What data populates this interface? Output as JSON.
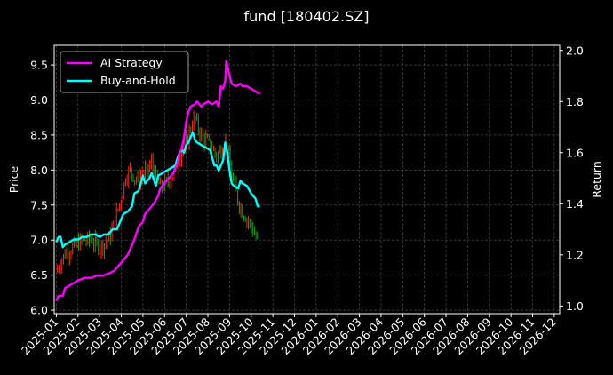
{
  "chart_data": {
    "type": "line",
    "title": "fund [180402.SZ]",
    "ylabel_left": "Price",
    "ylabel_right": "Return",
    "ylim_left": [
      5.95,
      9.78
    ],
    "ylim_right": [
      0.97,
      2.02
    ],
    "yticks_left": [
      "6.0",
      "6.5",
      "7.0",
      "7.5",
      "8.0",
      "8.5",
      "9.0",
      "9.5"
    ],
    "yticks_right": [
      "1.0",
      "1.2",
      "1.4",
      "1.6",
      "1.8",
      "2.0"
    ],
    "xticks": [
      "2025-01",
      "2025-02",
      "2025-03",
      "2025-04",
      "2025-05",
      "2025-06",
      "2025-07",
      "2025-08",
      "2025-09",
      "2025-10",
      "2025-11",
      "2025-12",
      "2026-01",
      "2026-02",
      "2026-03",
      "2026-04",
      "2026-05",
      "2026-06",
      "2026-07",
      "2026-08",
      "2026-09",
      "2026-10",
      "2026-11",
      "2026-12"
    ],
    "xlim_months": [
      -0.1,
      23.25
    ],
    "grid": true,
    "legend_position": "top-left",
    "colors": {
      "background": "#000000",
      "ai": "#ff00ff",
      "bh": "#00ffff",
      "up": "#ff2a1a",
      "down": "#1f9e1f",
      "grid": "#555555"
    },
    "series": [
      {
        "name": "AI Strategy",
        "axis": "right",
        "points": [
          [
            0.0,
            1.02
          ],
          [
            0.1,
            1.04
          ],
          [
            0.3,
            1.04
          ],
          [
            0.4,
            1.07
          ],
          [
            0.6,
            1.08
          ],
          [
            0.8,
            1.09
          ],
          [
            1.0,
            1.1
          ],
          [
            1.3,
            1.11
          ],
          [
            1.6,
            1.11
          ],
          [
            1.9,
            1.12
          ],
          [
            2.2,
            1.12
          ],
          [
            2.5,
            1.13
          ],
          [
            2.7,
            1.14
          ],
          [
            2.9,
            1.16
          ],
          [
            3.1,
            1.18
          ],
          [
            3.3,
            1.2
          ],
          [
            3.4,
            1.22
          ],
          [
            3.6,
            1.26
          ],
          [
            3.8,
            1.31
          ],
          [
            4.0,
            1.33
          ],
          [
            4.1,
            1.36
          ],
          [
            4.3,
            1.38
          ],
          [
            4.5,
            1.4
          ],
          [
            4.7,
            1.43
          ],
          [
            4.8,
            1.46
          ],
          [
            5.0,
            1.48
          ],
          [
            5.2,
            1.5
          ],
          [
            5.4,
            1.52
          ],
          [
            5.6,
            1.56
          ],
          [
            5.7,
            1.6
          ],
          [
            5.8,
            1.62
          ],
          [
            5.9,
            1.66
          ],
          [
            6.0,
            1.72
          ],
          [
            6.1,
            1.76
          ],
          [
            6.2,
            1.78
          ],
          [
            6.4,
            1.79
          ],
          [
            6.5,
            1.8
          ],
          [
            6.7,
            1.78
          ],
          [
            6.8,
            1.79
          ],
          [
            7.0,
            1.8
          ],
          [
            7.2,
            1.79
          ],
          [
            7.4,
            1.8
          ],
          [
            7.5,
            1.78
          ],
          [
            7.6,
            1.86
          ],
          [
            7.7,
            1.85
          ],
          [
            7.8,
            1.88
          ],
          [
            7.85,
            1.96
          ],
          [
            7.95,
            1.92
          ],
          [
            8.0,
            1.9
          ],
          [
            8.1,
            1.87
          ],
          [
            8.3,
            1.86
          ],
          [
            8.5,
            1.87
          ],
          [
            8.6,
            1.86
          ],
          [
            8.8,
            1.86
          ],
          [
            9.0,
            1.85
          ],
          [
            9.2,
            1.84
          ],
          [
            9.4,
            1.83
          ]
        ]
      },
      {
        "name": "Buy-and-Hold",
        "axis": "right",
        "points": [
          [
            0.0,
            1.25
          ],
          [
            0.1,
            1.27
          ],
          [
            0.2,
            1.27
          ],
          [
            0.3,
            1.23
          ],
          [
            0.4,
            1.24
          ],
          [
            0.6,
            1.25
          ],
          [
            0.8,
            1.26
          ],
          [
            1.0,
            1.26
          ],
          [
            1.2,
            1.27
          ],
          [
            1.4,
            1.27
          ],
          [
            1.6,
            1.28
          ],
          [
            1.8,
            1.28
          ],
          [
            2.0,
            1.27
          ],
          [
            2.2,
            1.28
          ],
          [
            2.4,
            1.28
          ],
          [
            2.6,
            1.3
          ],
          [
            2.8,
            1.3
          ],
          [
            2.9,
            1.32
          ],
          [
            3.1,
            1.36
          ],
          [
            3.3,
            1.37
          ],
          [
            3.5,
            1.39
          ],
          [
            3.6,
            1.44
          ],
          [
            3.8,
            1.45
          ],
          [
            3.9,
            1.48
          ],
          [
            4.0,
            1.51
          ],
          [
            4.1,
            1.48
          ],
          [
            4.3,
            1.5
          ],
          [
            4.4,
            1.52
          ],
          [
            4.6,
            1.47
          ],
          [
            4.7,
            1.51
          ],
          [
            4.9,
            1.52
          ],
          [
            5.1,
            1.53
          ],
          [
            5.3,
            1.54
          ],
          [
            5.5,
            1.55
          ],
          [
            5.6,
            1.58
          ],
          [
            5.7,
            1.6
          ],
          [
            5.8,
            1.61
          ],
          [
            5.9,
            1.6
          ],
          [
            6.0,
            1.63
          ],
          [
            6.1,
            1.64
          ],
          [
            6.2,
            1.66
          ],
          [
            6.3,
            1.68
          ],
          [
            6.4,
            1.65
          ],
          [
            6.5,
            1.64
          ],
          [
            6.7,
            1.63
          ],
          [
            6.9,
            1.62
          ],
          [
            7.1,
            1.61
          ],
          [
            7.2,
            1.58
          ],
          [
            7.3,
            1.55
          ],
          [
            7.4,
            1.55
          ],
          [
            7.5,
            1.53
          ],
          [
            7.6,
            1.55
          ],
          [
            7.7,
            1.57
          ],
          [
            7.8,
            1.64
          ],
          [
            7.9,
            1.6
          ],
          [
            8.0,
            1.53
          ],
          [
            8.1,
            1.48
          ],
          [
            8.2,
            1.47
          ],
          [
            8.4,
            1.46
          ],
          [
            8.5,
            1.49
          ],
          [
            8.6,
            1.48
          ],
          [
            8.8,
            1.47
          ],
          [
            9.0,
            1.44
          ],
          [
            9.2,
            1.42
          ],
          [
            9.3,
            1.39
          ],
          [
            9.4,
            1.39
          ]
        ]
      }
    ],
    "price_series": {
      "axis": "left",
      "values": [
        [
          0.0,
          6.55
        ],
        [
          0.2,
          6.7
        ],
        [
          0.4,
          6.8
        ],
        [
          0.6,
          6.85
        ],
        [
          0.8,
          6.9
        ],
        [
          1.0,
          6.95
        ],
        [
          1.2,
          7.0
        ],
        [
          1.4,
          7.0
        ],
        [
          1.6,
          7.0
        ],
        [
          1.8,
          6.95
        ],
        [
          2.0,
          6.9
        ],
        [
          2.2,
          6.95
        ],
        [
          2.4,
          7.0
        ],
        [
          2.6,
          7.15
        ],
        [
          2.8,
          7.4
        ],
        [
          3.0,
          7.6
        ],
        [
          3.2,
          7.9
        ],
        [
          3.4,
          8.0
        ],
        [
          3.6,
          7.9
        ],
        [
          3.8,
          7.85
        ],
        [
          4.0,
          7.95
        ],
        [
          4.2,
          8.0
        ],
        [
          4.4,
          8.1
        ],
        [
          4.6,
          7.9
        ],
        [
          4.8,
          7.75
        ],
        [
          5.0,
          7.8
        ],
        [
          5.2,
          7.85
        ],
        [
          5.4,
          7.95
        ],
        [
          5.6,
          8.1
        ],
        [
          5.8,
          8.3
        ],
        [
          6.0,
          8.4
        ],
        [
          6.2,
          8.6
        ],
        [
          6.4,
          8.75
        ],
        [
          6.6,
          8.55
        ],
        [
          6.8,
          8.45
        ],
        [
          7.0,
          8.4
        ],
        [
          7.2,
          8.3
        ],
        [
          7.4,
          8.2
        ],
        [
          7.6,
          8.3
        ],
        [
          7.8,
          8.4
        ],
        [
          8.0,
          8.1
        ],
        [
          8.2,
          7.8
        ],
        [
          8.4,
          7.55
        ],
        [
          8.6,
          7.4
        ],
        [
          8.8,
          7.3
        ],
        [
          9.0,
          7.2
        ],
        [
          9.2,
          7.05
        ],
        [
          9.4,
          6.9
        ]
      ]
    }
  }
}
